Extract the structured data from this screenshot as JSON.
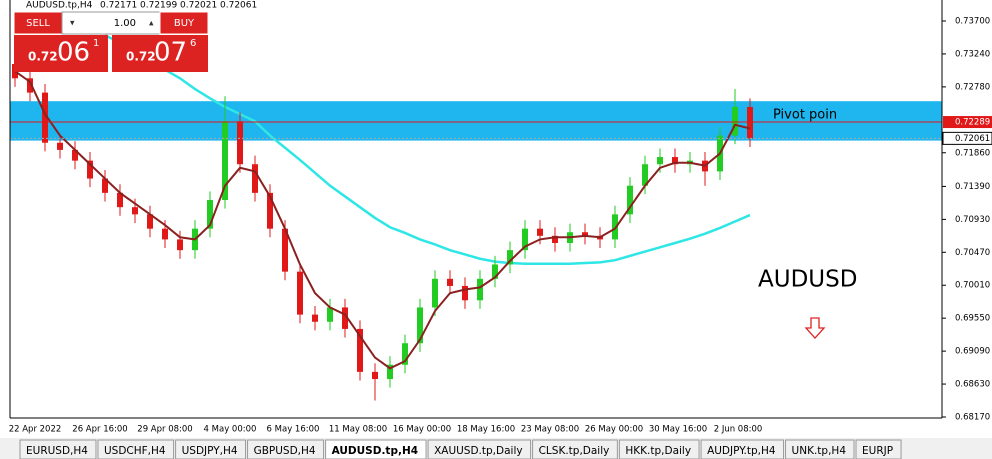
{
  "header": {
    "symbol": "AUDUSD.tp,H4",
    "ohlc": [
      "0.72171",
      "0.72199",
      "0.72021",
      "0.72061"
    ]
  },
  "trade_panel": {
    "sell": "SELL",
    "lot": "1.00",
    "buy": "BUY",
    "sell_price": {
      "prefix": "0.72",
      "big": "06",
      "small": "1"
    },
    "buy_price": {
      "prefix": "0.72",
      "big": "07",
      "small": "6"
    }
  },
  "chart": {
    "ylim": [
      0.6817,
      0.737
    ],
    "price_ticks": [
      {
        "value": 0.737,
        "label": "0.73700"
      },
      {
        "value": 0.7324,
        "label": "0.73240"
      },
      {
        "value": 0.7278,
        "label": "0.72780"
      },
      {
        "value": 0.7186,
        "label": "0.71860"
      },
      {
        "value": 0.7139,
        "label": "0.71390"
      },
      {
        "value": 0.7093,
        "label": "0.70930"
      },
      {
        "value": 0.7047,
        "label": "0.70470"
      },
      {
        "value": 0.7001,
        "label": "0.70010"
      },
      {
        "value": 0.6955,
        "label": "0.69550"
      },
      {
        "value": 0.6909,
        "label": "0.69090"
      },
      {
        "value": 0.6863,
        "label": "0.68630"
      },
      {
        "value": 0.6817,
        "label": "0.68170"
      }
    ],
    "pivot": {
      "value": 0.72289,
      "label": "0.72289",
      "name": "Pivot poin"
    },
    "pivot_zone": [
      0.7258,
      0.7203
    ],
    "current": {
      "value": 0.72061,
      "label": "0.72061"
    },
    "symbol_label": "AUDUSD",
    "time_labels": [
      "22 Apr 2022",
      "26 Apr 16:00",
      "29 Apr 08:00",
      "4 May 00:00",
      "6 May 16:00",
      "11 May 08:00",
      "16 May 00:00",
      "18 May 16:00",
      "23 May 08:00",
      "26 May 00:00",
      "30 May 16:00",
      "2 Jun 08:00"
    ],
    "candles": [
      [
        0.731,
        0.7322,
        0.7278,
        0.729
      ],
      [
        0.729,
        0.7302,
        0.7258,
        0.727
      ],
      [
        0.727,
        0.7282,
        0.7188,
        0.72
      ],
      [
        0.72,
        0.7212,
        0.7178,
        0.719
      ],
      [
        0.719,
        0.7202,
        0.7163,
        0.7175
      ],
      [
        0.7175,
        0.7187,
        0.7138,
        0.715
      ],
      [
        0.715,
        0.7162,
        0.7118,
        0.713
      ],
      [
        0.713,
        0.7142,
        0.7098,
        0.711
      ],
      [
        0.711,
        0.7122,
        0.7088,
        0.71
      ],
      [
        0.71,
        0.7112,
        0.7068,
        0.708
      ],
      [
        0.708,
        0.7092,
        0.7053,
        0.7065
      ],
      [
        0.7065,
        0.7077,
        0.7038,
        0.705
      ],
      [
        0.705,
        0.7092,
        0.7038,
        0.708
      ],
      [
        0.708,
        0.7132,
        0.7068,
        0.712
      ],
      [
        0.712,
        0.7265,
        0.7108,
        0.723
      ],
      [
        0.723,
        0.7242,
        0.7158,
        0.717
      ],
      [
        0.717,
        0.7182,
        0.7118,
        0.713
      ],
      [
        0.713,
        0.7142,
        0.7068,
        0.708
      ],
      [
        0.708,
        0.7092,
        0.7008,
        0.702
      ],
      [
        0.702,
        0.7032,
        0.6948,
        0.696
      ],
      [
        0.696,
        0.6972,
        0.6938,
        0.695
      ],
      [
        0.695,
        0.6982,
        0.6938,
        0.697
      ],
      [
        0.697,
        0.6982,
        0.6928,
        0.694
      ],
      [
        0.694,
        0.6952,
        0.6868,
        0.688
      ],
      [
        0.688,
        0.6892,
        0.684,
        0.687
      ],
      [
        0.687,
        0.6902,
        0.6858,
        0.689
      ],
      [
        0.689,
        0.6932,
        0.6878,
        0.692
      ],
      [
        0.692,
        0.6982,
        0.6908,
        0.697
      ],
      [
        0.697,
        0.7022,
        0.6958,
        0.701
      ],
      [
        0.701,
        0.7022,
        0.6988,
        0.7
      ],
      [
        0.7,
        0.7012,
        0.6968,
        0.698
      ],
      [
        0.698,
        0.7022,
        0.6968,
        0.701
      ],
      [
        0.701,
        0.7042,
        0.6998,
        0.703
      ],
      [
        0.703,
        0.7062,
        0.7018,
        0.705
      ],
      [
        0.705,
        0.7092,
        0.7038,
        0.708
      ],
      [
        0.708,
        0.7092,
        0.7058,
        0.707
      ],
      [
        0.707,
        0.7082,
        0.7048,
        0.706
      ],
      [
        0.706,
        0.7087,
        0.7048,
        0.7075
      ],
      [
        0.7075,
        0.7087,
        0.7058,
        0.707
      ],
      [
        0.707,
        0.7082,
        0.7053,
        0.7065
      ],
      [
        0.7065,
        0.7112,
        0.7053,
        0.71
      ],
      [
        0.71,
        0.7152,
        0.7088,
        0.714
      ],
      [
        0.714,
        0.7182,
        0.7128,
        0.717
      ],
      [
        0.717,
        0.7192,
        0.7158,
        0.718
      ],
      [
        0.718,
        0.7192,
        0.7158,
        0.717
      ],
      [
        0.717,
        0.7187,
        0.7158,
        0.7175
      ],
      [
        0.7175,
        0.7187,
        0.714,
        0.716
      ],
      [
        0.716,
        0.7222,
        0.7148,
        0.721
      ],
      [
        0.721,
        0.7275,
        0.7198,
        0.725
      ],
      [
        0.725,
        0.7262,
        0.7194,
        0.7206
      ]
    ],
    "ma_fast": [
      0.73,
      0.7285,
      0.724,
      0.721,
      0.719,
      0.717,
      0.715,
      0.713,
      0.7115,
      0.71,
      0.7085,
      0.7068,
      0.7065,
      0.7085,
      0.714,
      0.7165,
      0.716,
      0.7125,
      0.708,
      0.703,
      0.699,
      0.697,
      0.696,
      0.693,
      0.69,
      0.6885,
      0.6895,
      0.6925,
      0.6965,
      0.699,
      0.6995,
      0.6998,
      0.7012,
      0.7035,
      0.7055,
      0.7065,
      0.7068,
      0.7068,
      0.707,
      0.7068,
      0.708,
      0.711,
      0.714,
      0.7165,
      0.7172,
      0.7172,
      0.7168,
      0.7185,
      0.7225,
      0.722
    ],
    "ma_slow": [
      null,
      null,
      null,
      null,
      null,
      null,
      0.735,
      0.734,
      0.733,
      0.7315,
      0.7302,
      0.729,
      0.7275,
      0.7262,
      0.725,
      0.724,
      0.723,
      0.721,
      0.7193,
      0.7176,
      0.7158,
      0.714,
      0.7125,
      0.711,
      0.7095,
      0.7082,
      0.7074,
      0.7065,
      0.7058,
      0.705,
      0.7044,
      0.7038,
      0.7034,
      0.7032,
      0.7031,
      0.7031,
      0.7031,
      0.7031,
      0.7032,
      0.7033,
      0.7036,
      0.7042,
      0.7048,
      0.7054,
      0.706,
      0.7066,
      0.7073,
      0.7081,
      0.709,
      0.7099
    ]
  },
  "tabs": [
    "EURUSD,H4",
    "USDCHF,H4",
    "USDJPY,H4",
    "GBPUSD,H4",
    "AUDUSD.tp,H4",
    "XAUUSD.tp,Daily",
    "CLSK.tp,Daily",
    "HKK.tp,Daily",
    "AUDJPY.tp,H4",
    "UNK.tp,H4",
    "EURJP"
  ],
  "active_tab": 4
}
